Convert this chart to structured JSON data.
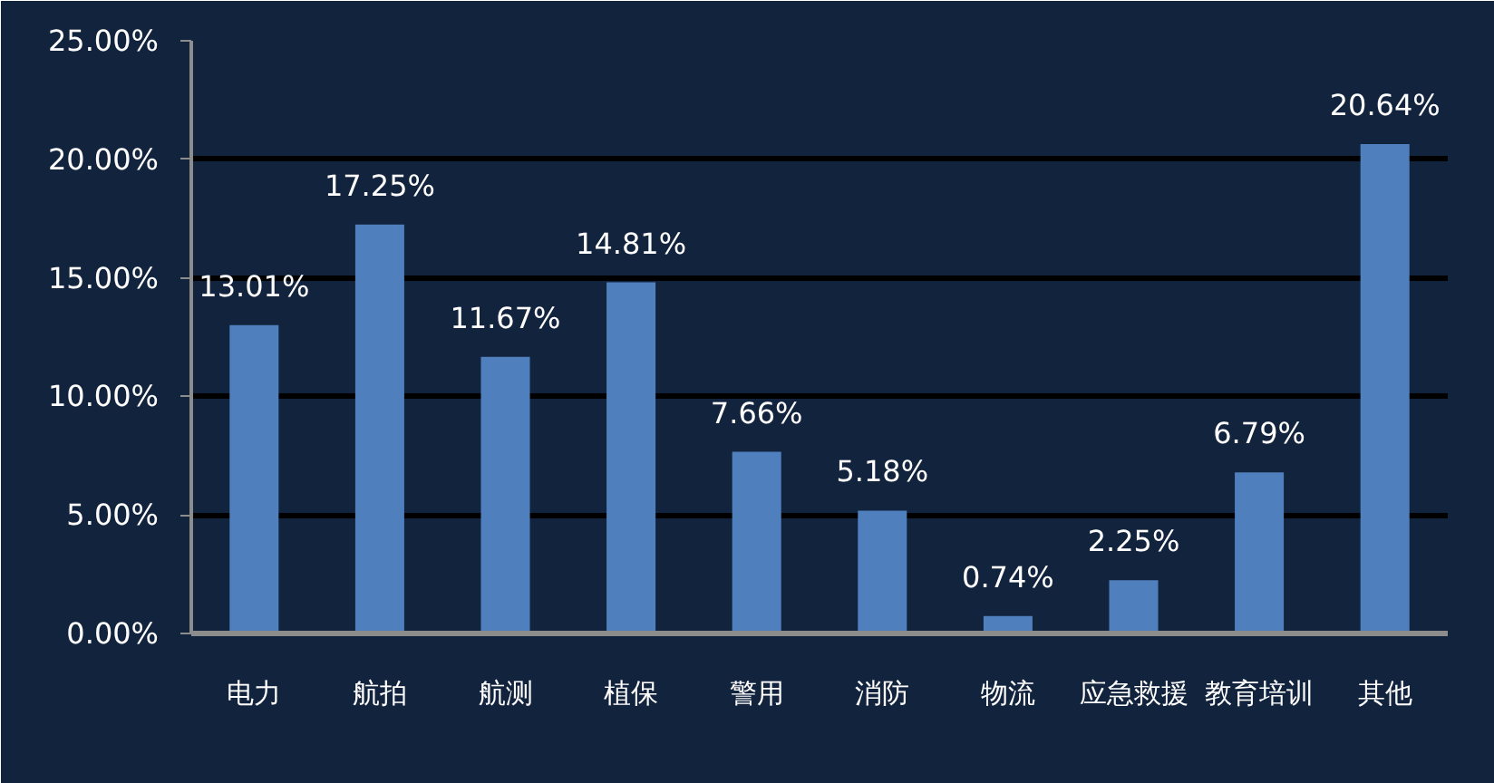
{
  "chart_data": {
    "type": "bar",
    "categories": [
      "电力",
      "航拍",
      "航测",
      "植保",
      "警用",
      "消防",
      "物流",
      "应急救援",
      "教育培训",
      "其他"
    ],
    "values": [
      13.01,
      17.25,
      11.67,
      14.81,
      7.66,
      5.18,
      0.74,
      2.25,
      6.79,
      20.64
    ],
    "value_labels": [
      "13.01%",
      "17.25%",
      "11.67%",
      "14.81%",
      "7.66%",
      "5.18%",
      "0.74%",
      "2.25%",
      "6.79%",
      "20.64%"
    ],
    "color": "#4f7fbd",
    "ylim": [
      0,
      25
    ],
    "yticks": [
      {
        "value": 0,
        "label": "0.00%"
      },
      {
        "value": 5,
        "label": "5.00%"
      },
      {
        "value": 10,
        "label": "10.00%"
      },
      {
        "value": 15,
        "label": "15.00%"
      },
      {
        "value": 20,
        "label": "20.00%"
      },
      {
        "value": 25,
        "label": "25.00%"
      }
    ],
    "grid": "y"
  }
}
